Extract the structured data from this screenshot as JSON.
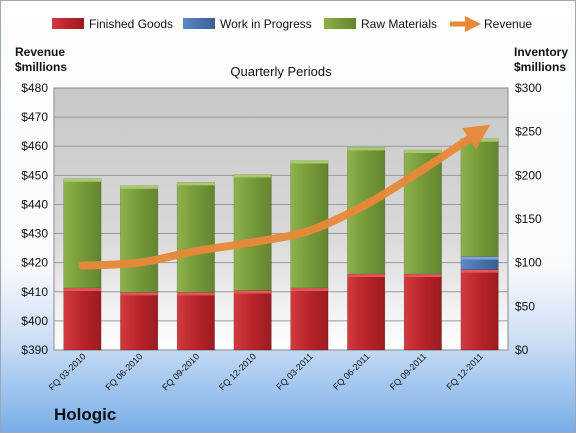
{
  "company": "Hologic",
  "chart_data": {
    "type": "bar",
    "subtype": "stacked-bar-with-line",
    "title": "Quarterly Periods",
    "left_axis_label": [
      "Revenue",
      "$millions"
    ],
    "right_axis_label": [
      "Inventory",
      "$millions"
    ],
    "categories": [
      "FQ 03-2010",
      "FQ 06-2010",
      "FQ 09-2010",
      "FQ 12-2010",
      "FQ 03-2011",
      "FQ 06-2011",
      "FQ 09-2011",
      "FQ 12-2011"
    ],
    "left_ylim": [
      390,
      480
    ],
    "left_ticks": [
      "$390",
      "$400",
      "$410",
      "$420",
      "$430",
      "$440",
      "$450",
      "$460",
      "$470",
      "$480"
    ],
    "right_ylim": [
      0,
      300
    ],
    "right_ticks": [
      "$0",
      "$50",
      "$100",
      "$150",
      "$200",
      "$250",
      "$300"
    ],
    "grid": true,
    "legend_position": "top",
    "series": [
      {
        "name": "Finished Goods",
        "axis": "right",
        "color": "#c0262c",
        "values": [
          71,
          66,
          66,
          68,
          71,
          87,
          87,
          92
        ]
      },
      {
        "name": "Work in Progress",
        "axis": "right",
        "color": "#4f79b5",
        "values": [
          0,
          0,
          0,
          0,
          0,
          0,
          0,
          15
        ]
      },
      {
        "name": "Raw Materials",
        "axis": "right",
        "color": "#7a9e3b",
        "values": [
          125,
          122,
          126,
          133,
          146,
          145,
          142,
          135
        ]
      },
      {
        "name": "Revenue",
        "axis": "left",
        "type": "line",
        "color": "#e8893a",
        "values": [
          419,
          420,
          424,
          427,
          431,
          440,
          452,
          465
        ]
      }
    ]
  }
}
